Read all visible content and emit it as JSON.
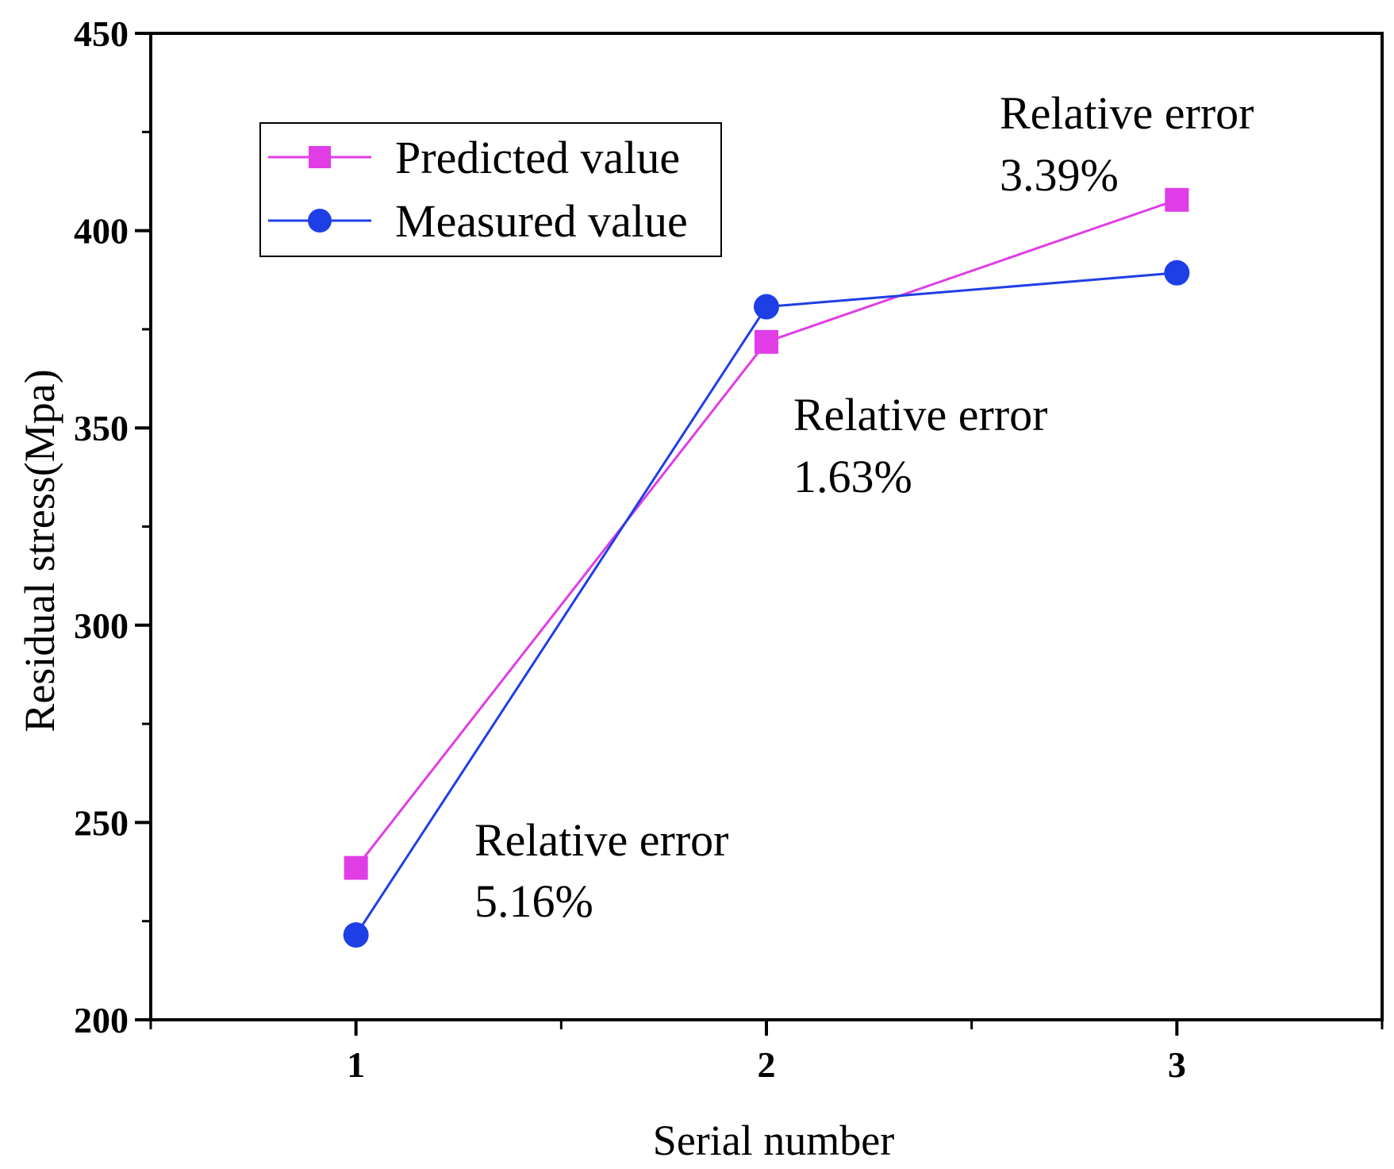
{
  "chart_data": {
    "type": "line",
    "title": "",
    "xlabel": "Serial number",
    "ylabel": "Residual stress(Mpa)",
    "x": [
      1,
      2,
      3
    ],
    "xlim": [
      0.5,
      3.5
    ],
    "ylim": [
      200,
      450
    ],
    "x_ticks": [
      1,
      2,
      3
    ],
    "y_ticks": [
      200,
      250,
      300,
      350,
      400,
      450
    ],
    "grid": false,
    "legend_position": "top-left",
    "series": [
      {
        "name": "Predicted value",
        "values": [
          238.5,
          371.8,
          407.8
        ],
        "color": "#e03de6",
        "marker": "square"
      },
      {
        "name": "Measured value",
        "values": [
          221.5,
          380.7,
          389.3
        ],
        "color": "#1f3fe6",
        "marker": "circle"
      }
    ],
    "annotations": [
      {
        "line1": "Relative error",
        "line2": "5.16%",
        "near_x": 1
      },
      {
        "line1": "Relative error",
        "line2": "1.63%",
        "near_x": 2
      },
      {
        "line1": "Relative error",
        "line2": "3.39%",
        "near_x": 3
      }
    ]
  }
}
